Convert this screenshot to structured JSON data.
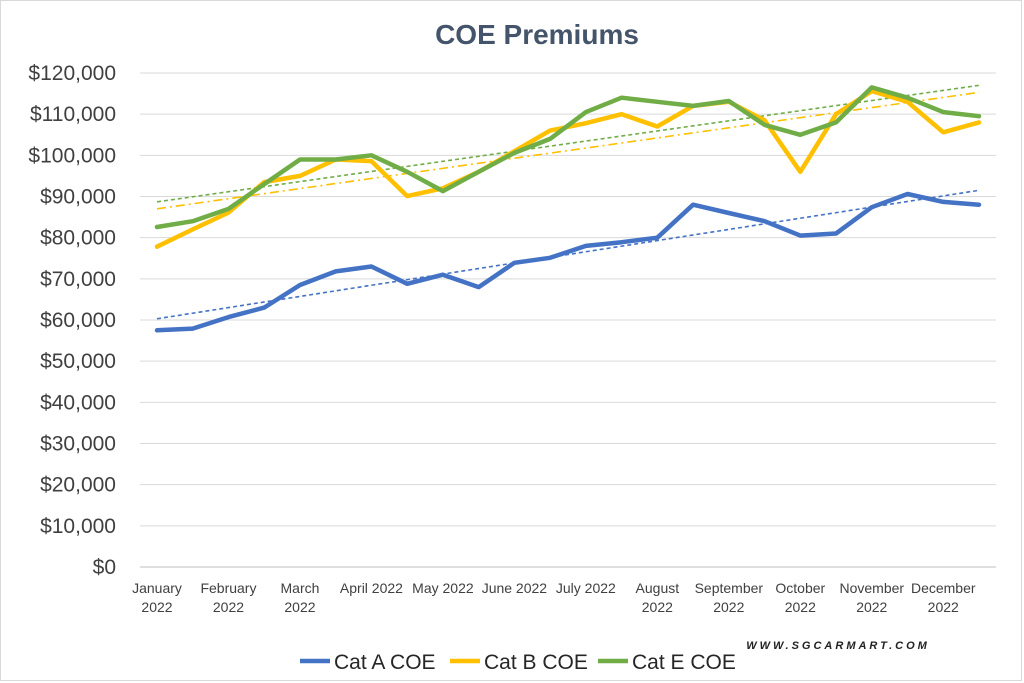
{
  "chart_data": {
    "type": "line",
    "title": "COE Premiums",
    "categories": [
      [
        "January",
        "2022"
      ],
      [
        "",
        ""
      ],
      [
        "February",
        "2022"
      ],
      [
        "",
        ""
      ],
      [
        "March",
        "2022"
      ],
      [
        "",
        ""
      ],
      [
        "April 2022",
        ""
      ],
      [
        "",
        ""
      ],
      [
        "May 2022",
        ""
      ],
      [
        "",
        ""
      ],
      [
        "June 2022",
        ""
      ],
      [
        "",
        ""
      ],
      [
        "July 2022",
        ""
      ],
      [
        "",
        ""
      ],
      [
        "August",
        "2022"
      ],
      [
        "",
        ""
      ],
      [
        "September",
        "2022"
      ],
      [
        "",
        ""
      ],
      [
        "October",
        "2022"
      ],
      [
        "",
        ""
      ],
      [
        "November",
        "2022"
      ],
      [
        "",
        ""
      ],
      [
        "December",
        "2022"
      ],
      [
        "",
        ""
      ]
    ],
    "ylim": [
      0,
      120000
    ],
    "ytick_values": [
      0,
      10000,
      20000,
      30000,
      40000,
      50000,
      60000,
      70000,
      80000,
      90000,
      100000,
      110000,
      120000
    ],
    "ytick_labels": [
      "$0",
      "$10,000",
      "$20,000",
      "$30,000",
      "$40,000",
      "$50,000",
      "$60,000",
      "$70,000",
      "$80,000",
      "$90,000",
      "$100,000",
      "$110,000",
      "$120,000"
    ],
    "grid": true,
    "legend_position": "bottom",
    "series": [
      {
        "name": "Cat A COE",
        "color": "#4472c4",
        "values": [
          57500,
          57900,
          60700,
          63000,
          68500,
          71800,
          73000,
          68800,
          71000,
          68000,
          73900,
          75100,
          78000,
          78900,
          80000,
          88000,
          86000,
          84000,
          80500,
          81000,
          87400,
          90600,
          88700,
          88000
        ],
        "trendline": {
          "style": "dashed",
          "start": 60300,
          "end": 91500
        }
      },
      {
        "name": "Cat B COE",
        "color": "#ffc000",
        "values": [
          77800,
          82000,
          86100,
          93500,
          95000,
          99000,
          98600,
          90100,
          92000,
          96000,
          101000,
          106000,
          107800,
          110000,
          107000,
          112000,
          113000,
          108500,
          96000,
          110000,
          115600,
          113000,
          105600,
          108000
        ],
        "trendline": {
          "style": "dashdot",
          "start": 87000,
          "end": 115300
        }
      },
      {
        "name": "Cat E COE",
        "color": "#70ad47",
        "values": [
          82600,
          84000,
          87000,
          93000,
          99000,
          99000,
          100000,
          96000,
          91300,
          96000,
          100600,
          104000,
          110500,
          114000,
          113000,
          112000,
          113200,
          107400,
          105000,
          108000,
          116500,
          114000,
          110500,
          109500
        ],
        "trendline": {
          "style": "dashed",
          "start": 88700,
          "end": 117000
        }
      }
    ]
  },
  "watermark": "WWW.SGCARMART.COM"
}
